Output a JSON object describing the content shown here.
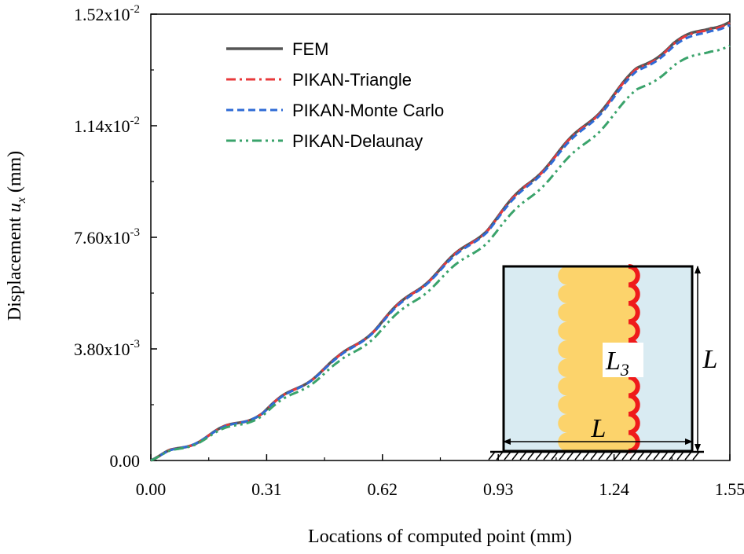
{
  "chart_data": {
    "type": "line",
    "xlabel": "Locations of computed point (mm)",
    "ylabel_prefix": "Displacement ",
    "ylabel_var": "u",
    "ylabel_sub": "x",
    "ylabel_unit": " (mm)",
    "xlim": [
      0,
      1.55
    ],
    "ylim": [
      0,
      0.0152
    ],
    "x_ticks": [
      0,
      0.31,
      0.62,
      0.93,
      1.24,
      1.55
    ],
    "x_tick_labels": [
      "0.00",
      "0.31",
      "0.62",
      "0.93",
      "1.24",
      "1.55"
    ],
    "y_ticks": [
      0,
      0.0038,
      0.0076,
      0.0114,
      0.0152
    ],
    "y_tick_labels": [
      {
        "mant": "0.00",
        "exp": ""
      },
      {
        "mant": "3.80x10",
        "exp": "-3"
      },
      {
        "mant": "7.60x10",
        "exp": "-3"
      },
      {
        "mant": "1.14x10",
        "exp": "-2"
      },
      {
        "mant": "1.52x10",
        "exp": "-2"
      }
    ],
    "grid": false,
    "legend_position": "top-left",
    "base_curve": {
      "x": [
        0.0,
        0.1,
        0.2,
        0.3,
        0.4,
        0.5,
        0.6,
        0.7,
        0.8,
        0.9,
        1.0,
        1.1,
        1.2,
        1.3,
        1.4,
        1.5,
        1.55
      ],
      "y": [
        0.0,
        0.00055,
        0.0011,
        0.00165,
        0.00255,
        0.00345,
        0.0045,
        0.0057,
        0.0068,
        0.0079,
        0.0093,
        0.0106,
        0.0119,
        0.0133,
        0.0142,
        0.0148,
        0.01493
      ]
    },
    "series": [
      {
        "name": "FEM",
        "color": "#555555",
        "dash": "solid",
        "scale": 1.0,
        "wave_amp": 9e-05,
        "wave_period": 0.155
      },
      {
        "name": "PIKAN-Triangle",
        "color": "#e8393b",
        "dash": "dashdot",
        "scale": 0.998,
        "wave_amp": 9e-05,
        "wave_period": 0.155
      },
      {
        "name": "PIKAN-Monte Carlo",
        "color": "#2f6bd6",
        "dash": "dash",
        "scale": 0.993,
        "wave_amp": 8e-05,
        "wave_period": 0.155
      },
      {
        "name": "PIKAN-Delaunay",
        "color": "#3aa36b",
        "dash": "dashdotdot",
        "scale": 0.946,
        "wave_amp": 8e-05,
        "wave_period": 0.155
      }
    ],
    "inset": {
      "label_width": "L",
      "label_height": "L",
      "label_interface": "L",
      "label_interface_sub": "3",
      "colors": {
        "background": "#d9ebf2",
        "material": "#fcd36b",
        "interface": "#ef1b1b"
      }
    }
  }
}
